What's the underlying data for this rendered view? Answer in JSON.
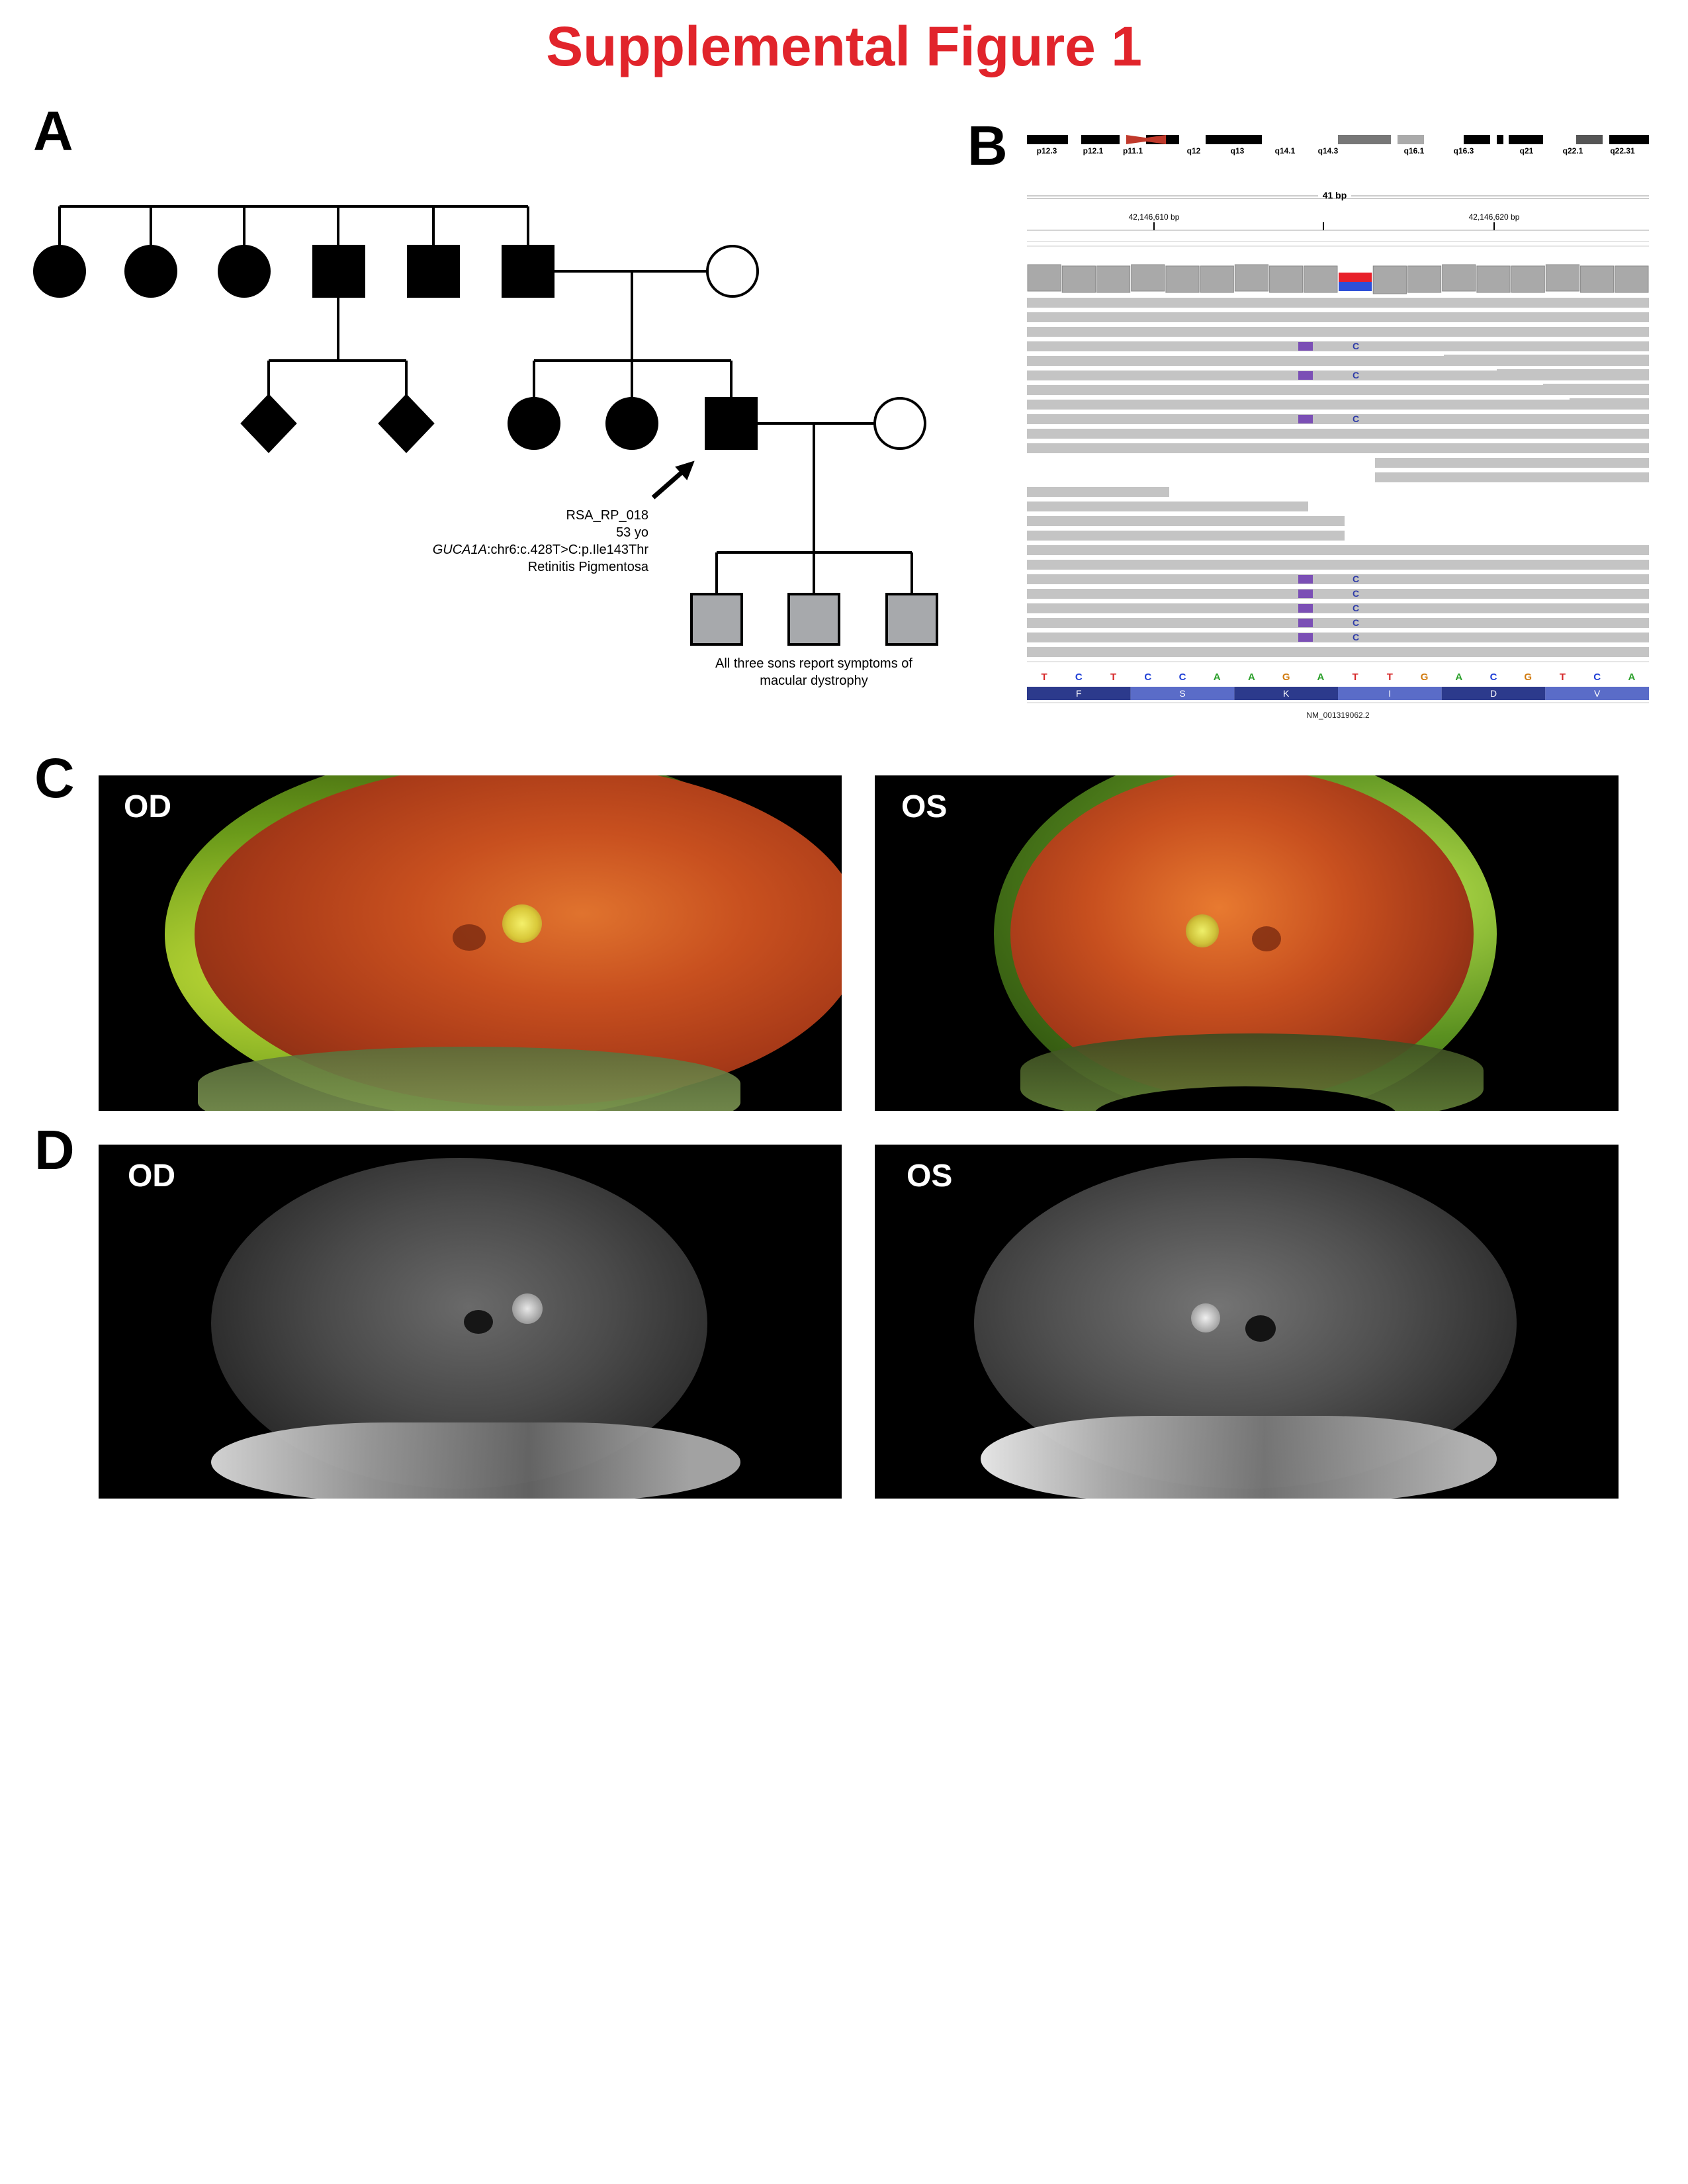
{
  "figure_title": "Supplemental Figure 1",
  "panels": {
    "a": "A",
    "b": "B",
    "c": "C",
    "d": "D"
  },
  "pedigree": {
    "proband_id": "RSA_RP_018",
    "proband_age": "53 yo",
    "gene": "GUCA1A",
    "variant": ":chr6:c.428T>C:p.Ile143Thr",
    "diagnosis": "Retinitis Pigmentosa",
    "sons_note_line1": "All three sons report symptoms of",
    "sons_note_line2": "macular dystrophy"
  },
  "igv": {
    "bands": [
      "p12.3",
      "p12.1",
      "p11.1",
      "q12",
      "q13",
      "q14.1",
      "q14.3",
      "q16.1",
      "q16.3",
      "q21",
      "q22.1",
      "q22.31"
    ],
    "span": "41 bp",
    "coord_left": "42,146,610 bp",
    "coord_right": "42,146,620 bp",
    "read_variant_base": "C",
    "sequence": [
      "T",
      "C",
      "T",
      "C",
      "C",
      "A",
      "A",
      "G",
      "A",
      "T",
      "T",
      "G",
      "A",
      "C",
      "G",
      "T",
      "C",
      "A"
    ],
    "amino_acids": [
      "F",
      "S",
      "K",
      "I",
      "D",
      "V"
    ],
    "transcript": "NM_001319062.2",
    "base_colors": {
      "T": "#d62728",
      "C": "#1f3fd6",
      "A": "#2ca02c",
      "G": "#d17b0f"
    }
  },
  "fundus": {
    "od_label": "OD",
    "os_label": "OS"
  },
  "angiography": {
    "od_label": "OD",
    "os_label": "OS"
  }
}
